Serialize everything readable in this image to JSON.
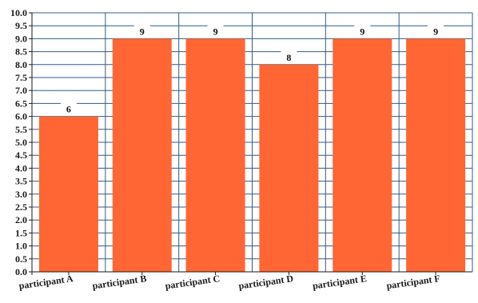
{
  "chart_data": {
    "type": "bar",
    "categories": [
      "participant A",
      "participant B",
      "participant C",
      "participant D",
      "participant E",
      "participant F"
    ],
    "values": [
      6,
      9,
      9,
      8,
      9,
      9
    ],
    "data_labels": [
      "6",
      "9",
      "9",
      "8",
      "9",
      "9"
    ],
    "title": "",
    "xlabel": "",
    "ylabel": "",
    "ylim": [
      0,
      10
    ],
    "y_ticks": [
      "0.0",
      "0.5",
      "1.0",
      "1.5",
      "2.0",
      "2.5",
      "3.0",
      "3.5",
      "4.0",
      "4.5",
      "5.0",
      "5.5",
      "6.0",
      "6.5",
      "7.0",
      "7.5",
      "8.0",
      "8.5",
      "9.0",
      "9.5",
      "10.0"
    ],
    "grid": true,
    "legend": "none",
    "colors": {
      "bar": "#ff6633",
      "grid": "#2f5d85",
      "axis": "#1a1a1a",
      "background": "#ffffff"
    }
  }
}
